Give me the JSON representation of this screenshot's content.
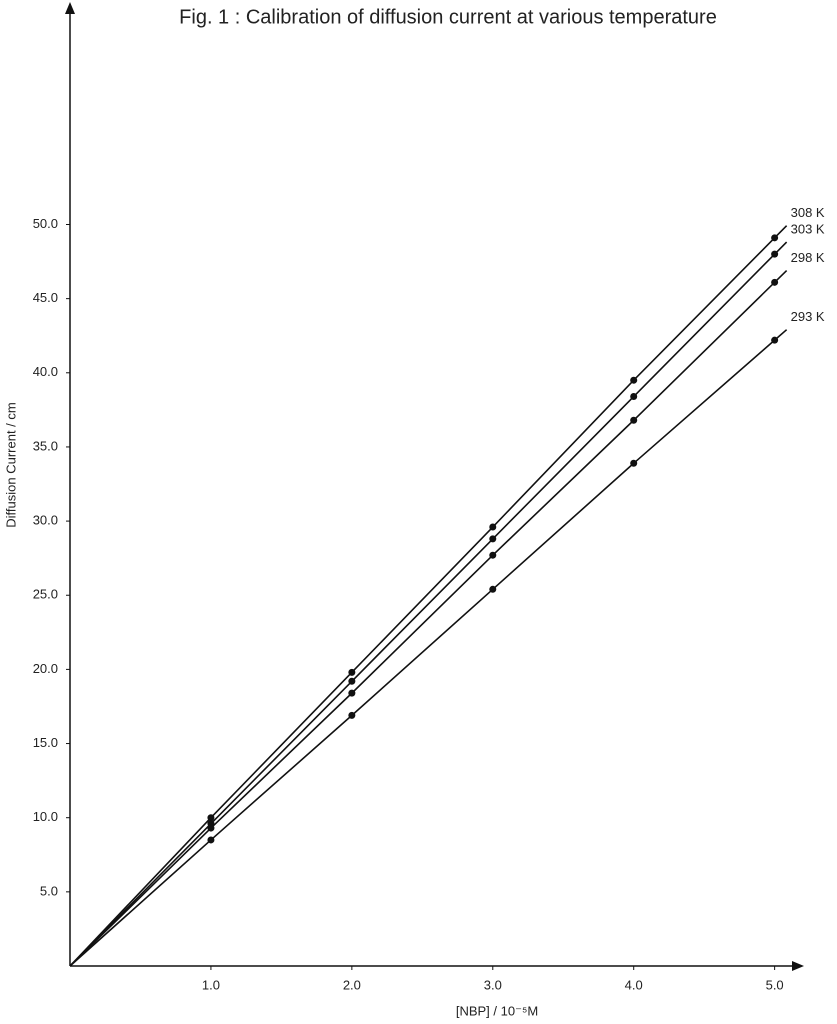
{
  "chart_data": {
    "type": "line",
    "title": "Fig. 1 : Calibration of diffusion current at various temperature",
    "x_label": "[NBP] / 10⁻⁵M",
    "y_label": "Diffusion Current / cm",
    "x": [
      1,
      2,
      3,
      4,
      5
    ],
    "series": [
      {
        "name": "308 K",
        "color": "#111111",
        "values": [
          10.0,
          19.8,
          29.6,
          39.5,
          49.1
        ]
      },
      {
        "name": "303 K",
        "color": "#111111",
        "values": [
          9.6,
          19.2,
          28.8,
          38.4,
          48.0
        ]
      },
      {
        "name": "298 K",
        "color": "#111111",
        "values": [
          9.3,
          18.4,
          27.7,
          36.8,
          46.1
        ]
      },
      {
        "name": "293 K",
        "color": "#111111",
        "values": [
          8.5,
          16.9,
          25.4,
          33.9,
          42.2
        ]
      }
    ],
    "xlim": [
      0,
      5.18
    ],
    "ylim": [
      0,
      64.8
    ],
    "xticks": [
      {
        "value": 1,
        "label": "1.0"
      },
      {
        "value": 2,
        "label": "2.0"
      },
      {
        "value": 3,
        "label": "3.0"
      },
      {
        "value": 4,
        "label": "4.0"
      },
      {
        "value": 5,
        "label": "5.0"
      }
    ],
    "yticks": [
      {
        "value": 5,
        "label": "5.0"
      },
      {
        "value": 10,
        "label": "10.0"
      },
      {
        "value": 15,
        "label": "15.0"
      },
      {
        "value": 20,
        "label": "20.0"
      },
      {
        "value": 25,
        "label": "25.0"
      },
      {
        "value": 30,
        "label": "30.0"
      },
      {
        "value": 35,
        "label": "35.0"
      },
      {
        "value": 40,
        "label": "40.0"
      },
      {
        "value": 45,
        "label": "45.0"
      },
      {
        "value": 50,
        "label": "50.0"
      }
    ],
    "grid": false
  }
}
